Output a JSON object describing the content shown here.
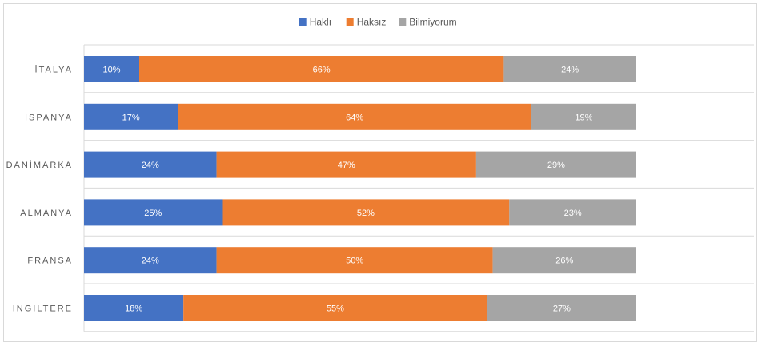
{
  "chart_data": {
    "type": "bar",
    "orientation": "horizontal",
    "stacked": "100%",
    "categories": [
      "İTALYA",
      "İSPANYA",
      "DANİMARKA",
      "ALMANYA",
      "FRANSA",
      "İNGİLTERE"
    ],
    "series": [
      {
        "name": "Haklı",
        "color": "#4472c4",
        "values": [
          10,
          17,
          24,
          25,
          24,
          18
        ]
      },
      {
        "name": "Haksız",
        "color": "#ed7d31",
        "values": [
          66,
          64,
          47,
          52,
          50,
          55
        ]
      },
      {
        "name": "Bilmiyorum",
        "color": "#a5a5a5",
        "values": [
          24,
          19,
          29,
          23,
          26,
          27
        ]
      }
    ],
    "value_suffix": "%",
    "xlim": [
      0,
      100
    ],
    "legend_position": "top-center",
    "grid": true,
    "title": "",
    "xlabel": "",
    "ylabel": ""
  }
}
